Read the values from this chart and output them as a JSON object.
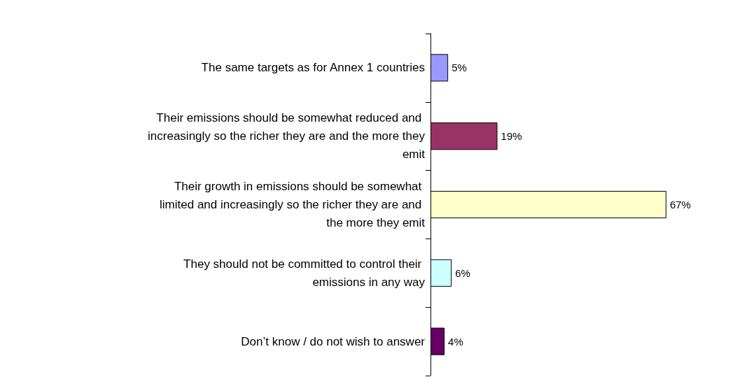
{
  "chart_data": {
    "type": "bar",
    "orientation": "horizontal",
    "categories": [
      "The same targets as for Annex 1 countries",
      "Their emissions should be somewhat reduced and increasingly so the richer they are and the more they emit",
      "Their growth in emissions should be somewhat limited and increasingly so the richer they are and the more they emit",
      "They should not be committed to control their emissions in any way",
      "Don’t know / do not wish to answer"
    ],
    "values": [
      5,
      19,
      67,
      6,
      4
    ],
    "colors": [
      "#9999ff",
      "#993366",
      "#ffffcc",
      "#ccffff",
      "#660066"
    ],
    "value_labels": [
      "5%",
      "19%",
      "67%",
      "6%",
      "4%"
    ],
    "tick_labels": "y",
    "grid": false
  }
}
